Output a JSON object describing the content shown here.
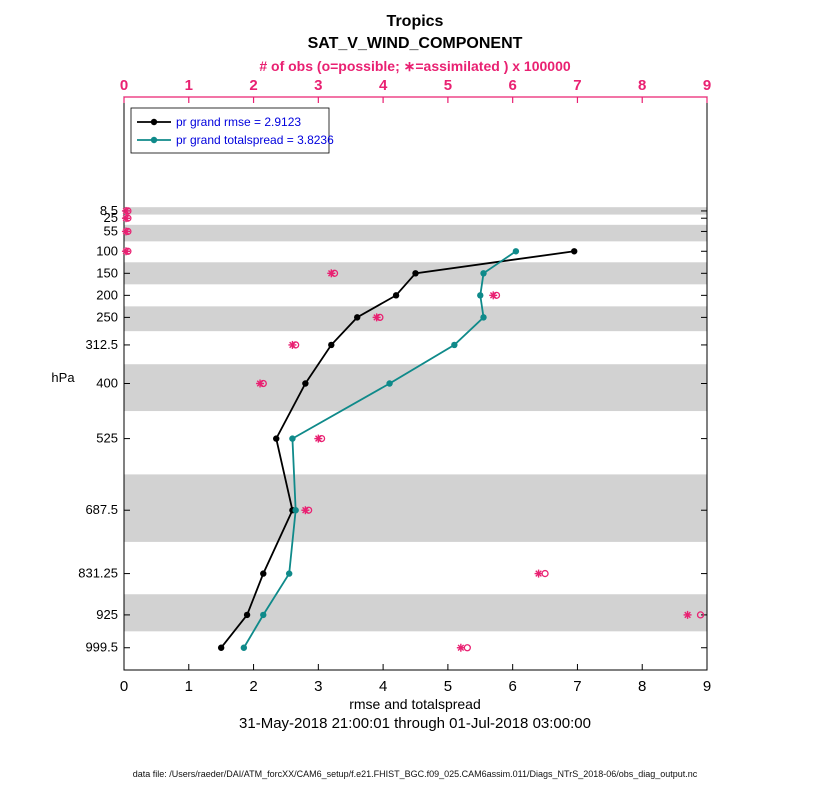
{
  "colors": {
    "obs": "#e92172",
    "rmse": "#000000",
    "totalspread": "#0f8a8a",
    "legend_text": "#0000dd",
    "band": "#d2d2d2"
  },
  "chart_data": {
    "type": "line",
    "title1": "Tropics",
    "title2": "SAT_V_WIND_COMPONENT",
    "top_axis_label": "# of obs (o=possible; ∗=assimilated ) x 100000",
    "xlabel": "rmse and totalspread",
    "date_range": "31-May-2018 21:00:01 through 01-Jul-2018 03:00:00",
    "ylabel": "hPa",
    "footer": "data file: /Users/raeder/DAI/ATM_forcXX/CAM6_setup/f.e21.FHIST_BGC.f09_025.CAM6assim.011/Diags_NTrS_2018-06/obs_diag_output.nc",
    "xlim": [
      0,
      9
    ],
    "xticks": [
      0,
      1,
      2,
      3,
      4,
      5,
      6,
      7,
      8,
      9
    ],
    "ylim_pressure": [
      -250,
      1050
    ],
    "levels": [
      8.5,
      25,
      55,
      100,
      150,
      200,
      250,
      312.5,
      400,
      525,
      687.5,
      831.25,
      925,
      999.5
    ],
    "shaded_levels": [
      8.5,
      55,
      150,
      250,
      400,
      687.5,
      925
    ],
    "grid": false,
    "legend_position": "top-left-inside",
    "series": [
      {
        "name": "pr grand rmse = 2.9123",
        "color": "#000000",
        "levels": [
          100,
          150,
          200,
          250,
          312.5,
          400,
          525,
          687.5,
          831.25,
          925,
          999.5
        ],
        "values": [
          6.95,
          4.5,
          4.2,
          3.6,
          3.2,
          2.8,
          2.35,
          2.6,
          2.15,
          1.9,
          1.5
        ]
      },
      {
        "name": "pr grand totalspread = 3.8236",
        "color": "#0f8a8a",
        "levels": [
          100,
          150,
          200,
          250,
          312.5,
          400,
          525,
          687.5,
          831.25,
          925,
          999.5
        ],
        "values": [
          6.05,
          5.55,
          5.5,
          5.55,
          5.1,
          4.1,
          2.6,
          2.65,
          2.55,
          2.15,
          1.85
        ]
      }
    ],
    "obs_counts": {
      "units_note": "x 100000",
      "levels": [
        8.5,
        25,
        55,
        100,
        150,
        200,
        250,
        312.5,
        400,
        525,
        687.5,
        831.25,
        925,
        999.5
      ],
      "assimilated": [
        0.03,
        0.03,
        0.03,
        0.03,
        3.2,
        5.7,
        3.9,
        2.6,
        2.1,
        3.0,
        2.8,
        6.4,
        8.7,
        5.2
      ],
      "possible": [
        0.06,
        0.06,
        0.06,
        0.06,
        3.25,
        5.75,
        3.95,
        2.65,
        2.15,
        3.05,
        2.85,
        6.5,
        8.9,
        5.3
      ]
    }
  }
}
